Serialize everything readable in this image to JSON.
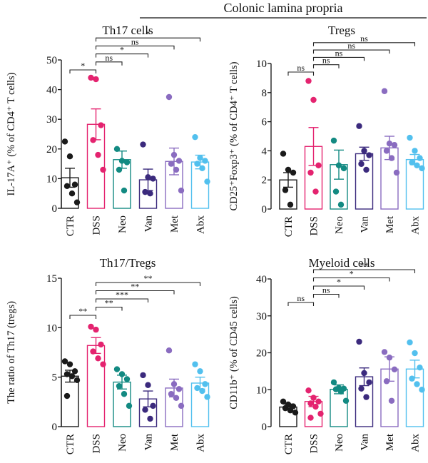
{
  "figure": {
    "title": "Colonic lamina propria"
  },
  "chart_data": [
    {
      "type": "bar",
      "title": "Th17 cells",
      "xlabel": "",
      "ylabel": "IL-17A⁺ (% of CD4⁺ T cells)",
      "ylim": [
        0,
        50
      ],
      "yticks": [
        0,
        10,
        20,
        30,
        40,
        50
      ],
      "categories": [
        "CTR",
        "DSS",
        "Neo",
        "Van",
        "Met",
        "Abx"
      ],
      "colors": [
        "#1a1a1a",
        "#e4236f",
        "#138a82",
        "#3b2a7d",
        "#8a6cc0",
        "#52c0ee"
      ],
      "values": [
        10.3,
        28.3,
        16.4,
        9.6,
        15.8,
        15.6
      ],
      "sem": [
        3.2,
        5.2,
        2.9,
        3.6,
        4.5,
        2.3
      ],
      "points": [
        [
          22.5,
          17.5,
          8,
          7.5,
          5,
          2
        ],
        [
          44,
          43.5,
          28,
          23,
          18,
          13
        ],
        [
          20,
          16,
          15.5,
          13,
          6
        ],
        [
          21.5,
          10.5,
          10,
          5.5,
          5
        ],
        [
          37.5,
          18,
          16,
          15,
          13,
          6
        ],
        [
          24,
          17,
          16,
          15,
          13.5,
          9
        ]
      ],
      "significance": [
        {
          "from": "DSS",
          "to": "CTR",
          "label": "*"
        },
        {
          "from": "DSS",
          "to": "Neo",
          "label": "ns"
        },
        {
          "from": "DSS",
          "to": "Van",
          "label": "*"
        },
        {
          "from": "DSS",
          "to": "Met",
          "label": "ns"
        },
        {
          "from": "DSS",
          "to": "Abx",
          "label": "*"
        }
      ]
    },
    {
      "type": "bar",
      "title": "Tregs",
      "xlabel": "",
      "ylabel": "CD25⁺Foxp3⁺ (% of CD4⁺ T cells)",
      "ylim": [
        0,
        10
      ],
      "yticks": [
        0,
        2,
        4,
        6,
        8,
        10
      ],
      "categories": [
        "CTR",
        "DSS",
        "Neo",
        "Van",
        "Met",
        "Abx"
      ],
      "colors": [
        "#1a1a1a",
        "#e4236f",
        "#138a82",
        "#3b2a7d",
        "#8a6cc0",
        "#52c0ee"
      ],
      "values": [
        2.0,
        4.3,
        3.05,
        3.8,
        4.2,
        3.4
      ],
      "sem": [
        0.5,
        1.3,
        1.0,
        0.45,
        0.8,
        0.35
      ],
      "points": [
        [
          3.8,
          2.7,
          2.5,
          1.3,
          0.3
        ],
        [
          8.8,
          7.5,
          3.0,
          2.5,
          1.2
        ],
        [
          4.7,
          3.0,
          2.8,
          1.2,
          0.3
        ],
        [
          5.7,
          4.0,
          3.7,
          3.1,
          2.7
        ],
        [
          8.1,
          4.5,
          4.4,
          4.0,
          3.5,
          2.5
        ],
        [
          4.9,
          4.0,
          3.5,
          3.2,
          3.0,
          2.8
        ]
      ],
      "significance": [
        {
          "from": "DSS",
          "to": "CTR",
          "label": "ns"
        },
        {
          "from": "DSS",
          "to": "Neo",
          "label": "ns"
        },
        {
          "from": "DSS",
          "to": "Van",
          "label": "ns"
        },
        {
          "from": "DSS",
          "to": "Met",
          "label": "ns"
        },
        {
          "from": "DSS",
          "to": "Abx",
          "label": "ns"
        }
      ]
    },
    {
      "type": "bar",
      "title": "Th17/Tregs",
      "xlabel": "",
      "ylabel": "The ratio of Th17 (tregs)",
      "ylim": [
        0,
        15
      ],
      "yticks": [
        0,
        5,
        10,
        15
      ],
      "categories": [
        "CTR",
        "DSS",
        "Neo",
        "Van",
        "Met",
        "Abx"
      ],
      "colors": [
        "#1a1a1a",
        "#e4236f",
        "#138a82",
        "#3b2a7d",
        "#8a6cc0",
        "#52c0ee"
      ],
      "values": [
        5.1,
        8.2,
        4.5,
        2.8,
        3.9,
        4.4
      ],
      "sem": [
        0.6,
        0.8,
        0.7,
        0.8,
        0.9,
        0.6
      ],
      "points": [
        [
          6.6,
          6.3,
          5.6,
          5.3,
          5.1,
          4.7,
          3.1
        ],
        [
          10.1,
          9.8,
          8.3,
          7.6,
          6.9,
          6.3
        ],
        [
          5.8,
          5.3,
          4.8,
          4.1,
          3.3,
          2.1
        ],
        [
          5.2,
          4.2,
          2.1,
          1.7,
          0.8
        ],
        [
          7.7,
          4.3,
          3.8,
          3.3,
          2.9,
          2.1
        ],
        [
          6.3,
          5.6,
          4.3,
          3.9,
          3.6,
          3.0
        ]
      ],
      "significance": [
        {
          "from": "DSS",
          "to": "CTR",
          "label": "**"
        },
        {
          "from": "DSS",
          "to": "Neo",
          "label": "**"
        },
        {
          "from": "DSS",
          "to": "Van",
          "label": "***"
        },
        {
          "from": "DSS",
          "to": "Met",
          "label": "**"
        },
        {
          "from": "DSS",
          "to": "Abx",
          "label": "**"
        }
      ]
    },
    {
      "type": "bar",
      "title": "Myeloid cells",
      "xlabel": "",
      "ylabel": "CD11b⁺ (% of CD45 cells)",
      "ylim": [
        0,
        40
      ],
      "yticks": [
        0,
        10,
        20,
        30,
        40
      ],
      "categories": [
        "CTR",
        "DSS",
        "Neo",
        "Van",
        "Met",
        "Abx"
      ],
      "colors": [
        "#1a1a1a",
        "#e4236f",
        "#138a82",
        "#3b2a7d",
        "#8a6cc0",
        "#52c0ee"
      ],
      "values": [
        5.3,
        6.8,
        10.1,
        13.5,
        15.6,
        15.6
      ],
      "sem": [
        0.8,
        1.4,
        1.2,
        2.4,
        3.3,
        2.4
      ],
      "points": [
        [
          6.8,
          6.0,
          5.5,
          5.0,
          4.4,
          3.8
        ],
        [
          9.8,
          7.8,
          6.8,
          6.3,
          5.4,
          3.5,
          2.4
        ],
        [
          12.0,
          10.5,
          10.3,
          10.1,
          9.5,
          7.0
        ],
        [
          23.0,
          14.5,
          12.0,
          10.3,
          8.0
        ],
        [
          20.2,
          18.7,
          15.5,
          12.3,
          7.0
        ],
        [
          22.8,
          19.9,
          16.0,
          13.0,
          11.5,
          10.0
        ]
      ],
      "significance": [
        {
          "from": "DSS",
          "to": "CTR",
          "label": "ns"
        },
        {
          "from": "DSS",
          "to": "Neo",
          "label": "ns"
        },
        {
          "from": "DSS",
          "to": "Van",
          "label": "*"
        },
        {
          "from": "DSS",
          "to": "Met",
          "label": "*"
        },
        {
          "from": "DSS",
          "to": "Abx",
          "label": "**"
        }
      ]
    }
  ]
}
